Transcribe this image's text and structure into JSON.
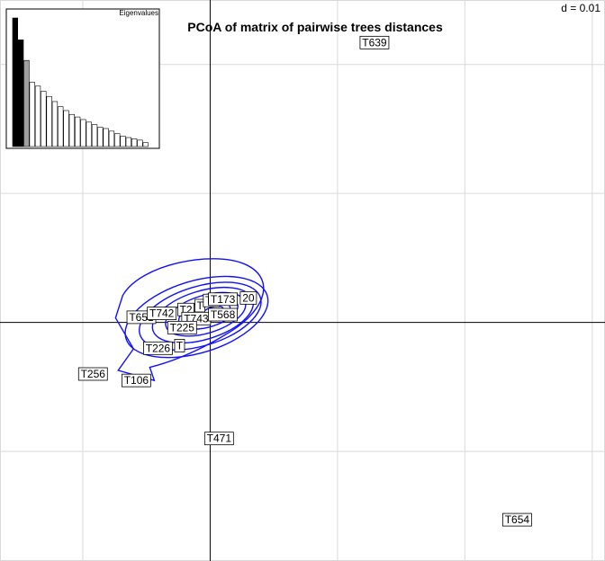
{
  "chart_data": {
    "type": "scatter",
    "title": "PCoA of matrix of pairwise trees distances",
    "scale_label": "d = 0.01",
    "grid": true,
    "xlim": [
      -0.0165,
      0.031
    ],
    "ylim": [
      -0.0185,
      0.025
    ],
    "points": [
      {
        "label": "T639",
        "x": 0.0129,
        "y": 0.0217
      },
      {
        "label": "T651",
        "x": -0.0054,
        "y": 0.0004
      },
      {
        "label": "T742",
        "x": -0.0038,
        "y": 0.0007
      },
      {
        "label": "T2",
        "x": -0.0019,
        "y": 0.001
      },
      {
        "label": "T",
        "x": -0.0008,
        "y": 0.0013
      },
      {
        "label": "T1",
        "x": 0.0001,
        "y": 0.0017
      },
      {
        "label": "T173",
        "x": 0.001,
        "y": 0.0018
      },
      {
        "label": "20",
        "x": 0.003,
        "y": 0.0019
      },
      {
        "label": "T743",
        "x": -0.0011,
        "y": 0.0003
      },
      {
        "label": "T568",
        "x": 0.001,
        "y": 0.0006
      },
      {
        "label": "T225",
        "x": -0.0022,
        "y": -0.0004
      },
      {
        "label": "T226",
        "x": -0.0041,
        "y": -0.002
      },
      {
        "label": "T",
        "x": -0.0024,
        "y": -0.0018
      },
      {
        "label": "T256",
        "x": -0.0092,
        "y": -0.004
      },
      {
        "label": "T106",
        "x": -0.0058,
        "y": -0.0045
      },
      {
        "label": "T471",
        "x": 0.0007,
        "y": -0.009
      },
      {
        "label": "T654",
        "x": 0.0241,
        "y": -0.0153
      }
    ],
    "eigenvalues": {
      "title": "Eigenvalues",
      "values": [
        100,
        83,
        67,
        50,
        47,
        43,
        39,
        35,
        31,
        28,
        25,
        23,
        21,
        19,
        17,
        15,
        14,
        12,
        10,
        8,
        7,
        6,
        5,
        3
      ],
      "bar_colors": [
        "#000000",
        "#000000",
        "#a0a0a0",
        "#ffffff"
      ]
    }
  }
}
